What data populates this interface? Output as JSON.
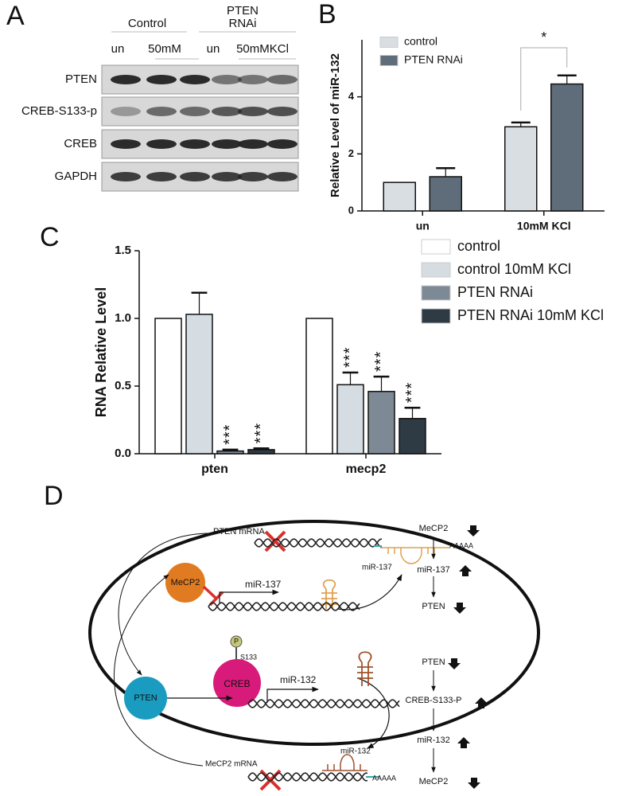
{
  "panel_a": {
    "label": "A",
    "groups": [
      {
        "lines": [
          "Control"
        ]
      },
      {
        "lines": [
          "PTEN",
          "RNAi"
        ]
      }
    ],
    "conditions": [
      "un",
      "50mM",
      "un",
      "50mMKCl"
    ],
    "rows": [
      "PTEN",
      "CREB-S133-p",
      "CREB",
      "GAPDH"
    ]
  },
  "chart_data": [
    {
      "type": "bar",
      "panel_label": "B",
      "ylabel": "Relative Level of miR-132",
      "categories": [
        "un",
        "10mM KCl"
      ],
      "series": [
        {
          "name": "control",
          "color": "#d9dee3",
          "values": [
            1,
            2.95
          ],
          "errors": [
            null,
            0.15
          ]
        },
        {
          "name": "PTEN RNAi",
          "color": "#5e6d79",
          "values": [
            1.2,
            4.45
          ],
          "errors": [
            0.3,
            0.3
          ]
        }
      ],
      "ylim": [
        0,
        6
      ],
      "yticks": [
        0,
        2,
        4
      ],
      "significance": {
        "text": "*",
        "category": 1
      }
    },
    {
      "type": "bar",
      "panel_label": "C",
      "ylabel": "RNA Relative Level",
      "categories": [
        "pten",
        "mecp2"
      ],
      "series": [
        {
          "name": "control",
          "color": "#ffffff",
          "values": [
            1,
            1
          ]
        },
        {
          "name": "control 10mM KCl",
          "color": "#d5dce2",
          "values": [
            1.03,
            0.51
          ],
          "errors": [
            0.16,
            0.09
          ],
          "labels": [
            null,
            "***"
          ]
        },
        {
          "name": "PTEN RNAi",
          "color": "#7d8a95",
          "values": [
            0.02,
            0.46
          ],
          "errors": [
            0.01,
            0.11
          ],
          "labels": [
            "***",
            "***"
          ]
        },
        {
          "name": "PTEN RNAi 10mM KCl",
          "color": "#2e3a44",
          "values": [
            0.03,
            0.26
          ],
          "errors": [
            0.01,
            0.08
          ],
          "labels": [
            "***",
            "***"
          ]
        }
      ],
      "ylim": [
        0,
        1.5
      ],
      "yticks": [
        {
          "value": 0,
          "label": "0.0"
        },
        {
          "value": 0.5,
          "label": "0.5"
        },
        {
          "value": 1,
          "label": "1.0"
        },
        {
          "value": 1.5,
          "label": "1.5"
        }
      ]
    }
  ],
  "panel_d": {
    "label": "D",
    "pten_mrna": "PTEN mRNA",
    "poly_a_top": "AAAAA",
    "mir137_out": "miR-137",
    "mecp2": "MeCP2",
    "mir137_gene": "miR-137",
    "pten": "PTEN",
    "phospho": "P",
    "site": "S133",
    "creb": "CREB",
    "mir132_gene": "miR-132",
    "mir132_out": "miR-132",
    "mecp2_mrna": "MeCP2 mRNA",
    "poly_a_bottom": "AAAAA",
    "flow_1": [
      "MeCP2",
      "miR-137",
      "PTEN"
    ],
    "flow_2": [
      "PTEN",
      "CREB-S133-P",
      "miR-132",
      "MeCP2"
    ]
  }
}
